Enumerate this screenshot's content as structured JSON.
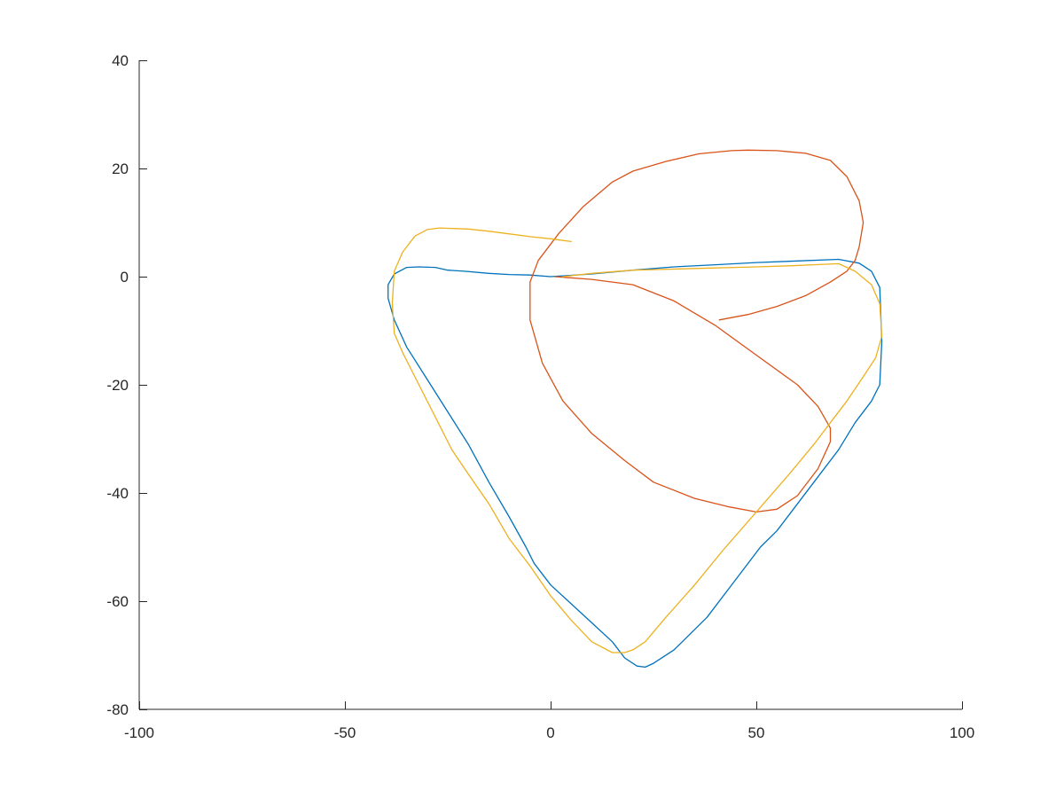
{
  "chart_data": {
    "type": "line",
    "title": "",
    "xlabel": "",
    "ylabel": "",
    "xlim": [
      -100,
      100
    ],
    "ylim": [
      -80,
      40
    ],
    "xticks": [
      -100,
      -50,
      0,
      50,
      100
    ],
    "yticks": [
      40,
      20,
      0,
      -20,
      -40,
      -60,
      -80
    ],
    "xtick_labels": [
      "-100",
      "-50",
      "0",
      "50",
      "100"
    ],
    "ytick_labels": [
      "40",
      "20",
      "0",
      "-20",
      "-40",
      "-60",
      "-80"
    ],
    "grid": false,
    "series": [
      {
        "color": "#0072BD",
        "x": [
          0,
          10,
          20,
          30,
          40,
          50,
          60,
          70,
          75,
          78,
          80,
          80.5,
          80,
          78,
          74,
          70,
          65,
          60,
          55,
          51,
          45,
          38,
          30,
          25,
          23,
          21,
          18,
          15,
          10,
          5,
          0,
          -4,
          -6,
          -10,
          -15,
          -20,
          -25,
          -30,
          -35,
          -38,
          -39.5,
          -39.5,
          -38,
          -35,
          -32,
          -28,
          -25,
          -21,
          -15,
          -10,
          -5,
          0
        ],
        "y": [
          0,
          0.5,
          1.2,
          1.8,
          2.2,
          2.6,
          2.9,
          3.2,
          2.5,
          1.0,
          -2,
          -12,
          -20,
          -23,
          -27,
          -32,
          -37,
          -42,
          -47,
          -50,
          -56,
          -63,
          -69,
          -71.5,
          -72.2,
          -72,
          -70.5,
          -67.5,
          -64,
          -60.5,
          -57,
          -53,
          -50,
          -44.5,
          -38,
          -31,
          -25,
          -19,
          -13,
          -8,
          -4,
          -1.5,
          0.5,
          1.7,
          1.8,
          1.7,
          1.2,
          1.0,
          0.6,
          0.4,
          0.3,
          0
        ]
      },
      {
        "color": "#D95319",
        "x": [
          1,
          10,
          20,
          30,
          40,
          50,
          60,
          65,
          68,
          68,
          65,
          60,
          55,
          50,
          43,
          35,
          25,
          18,
          10,
          3,
          -2,
          -5,
          -5,
          -3,
          2,
          8,
          15,
          20,
          28,
          36,
          44,
          48,
          55,
          62,
          68,
          72,
          75,
          76,
          75,
          74,
          72,
          68,
          62,
          55,
          48,
          41
        ],
        "y": [
          0,
          -0.5,
          -1.5,
          -4.5,
          -9,
          -14.5,
          -20,
          -24,
          -28,
          -30.5,
          -35.5,
          -40.5,
          -43,
          -43.5,
          -42.5,
          -41,
          -38,
          -34,
          -29,
          -23,
          -16,
          -8,
          -1,
          3,
          8,
          13,
          17.5,
          19.5,
          21.3,
          22.7,
          23.3,
          23.4,
          23.3,
          22.8,
          21.5,
          18.5,
          14,
          10,
          5.5,
          3,
          1,
          -1,
          -3.5,
          -5.5,
          -7,
          -8
        ]
      },
      {
        "color": "#EDB120",
        "x": [
          5,
          0,
          -5,
          -10,
          -15,
          -20,
          -27,
          -30,
          -33,
          -36,
          -38,
          -38.5,
          -38,
          -36,
          -32,
          -28,
          -24,
          -20,
          -15,
          -10,
          -5,
          0,
          5,
          10,
          15,
          18,
          20,
          23,
          28,
          35,
          42,
          50,
          58,
          64,
          68,
          72,
          76,
          79,
          80.5,
          80,
          78,
          74,
          70,
          64,
          58,
          50,
          40,
          30,
          20,
          10,
          3
        ],
        "y": [
          6.5,
          7.0,
          7.4,
          7.9,
          8.4,
          8.8,
          9.0,
          8.7,
          7.5,
          4.5,
          1.0,
          -5,
          -10.5,
          -14,
          -20,
          -26,
          -32,
          -36.5,
          -42,
          -48.5,
          -53.5,
          -59,
          -63.5,
          -67.5,
          -69.5,
          -69.5,
          -69,
          -67.5,
          -63,
          -57,
          -50.5,
          -43.5,
          -36.5,
          -31,
          -27,
          -23,
          -18.5,
          -15,
          -11,
          -5,
          -1.5,
          1,
          2.4,
          2.2,
          2.0,
          1.8,
          1.6,
          1.4,
          1.2,
          0.6,
          0
        ]
      }
    ]
  }
}
